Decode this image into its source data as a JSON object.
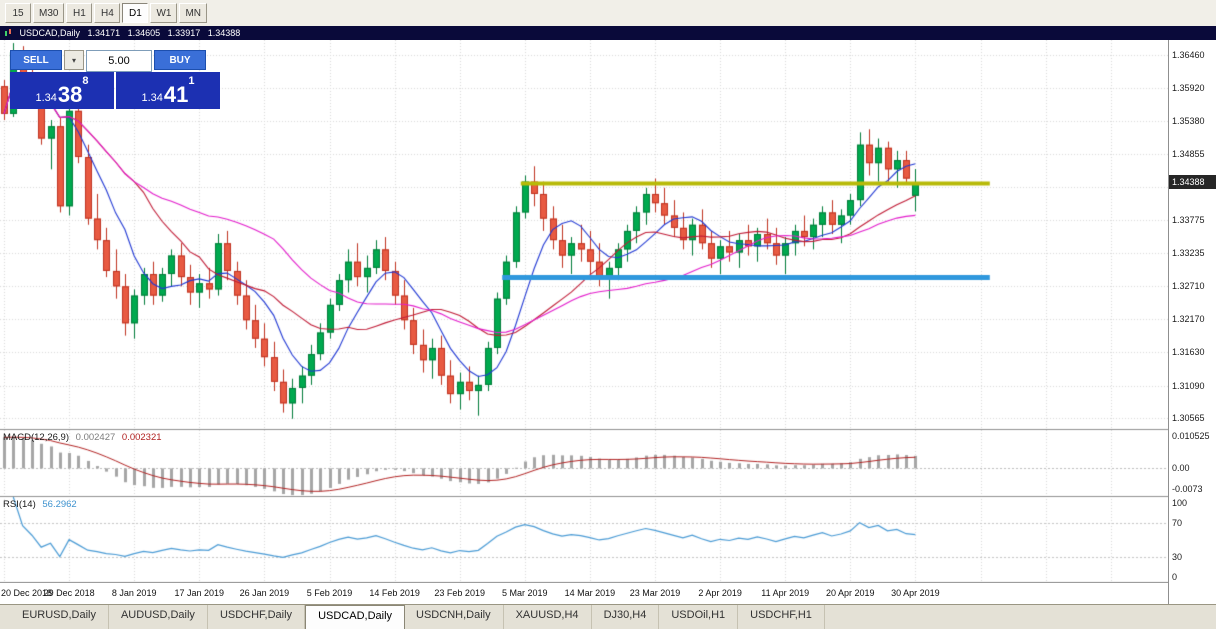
{
  "toolbar": {
    "timeframes": [
      {
        "label": "15",
        "active": false
      },
      {
        "label": "M30",
        "active": false
      },
      {
        "label": "H1",
        "active": false
      },
      {
        "label": "H4",
        "active": false
      },
      {
        "label": "D1",
        "active": true
      },
      {
        "label": "W1",
        "active": false
      },
      {
        "label": "MN",
        "active": false
      }
    ]
  },
  "chart_header": {
    "title": "USDCAD,Daily",
    "open": "1.34171",
    "high": "1.34605",
    "low": "1.33917",
    "close": "1.34388"
  },
  "trade_panel": {
    "sell_label": "SELL",
    "buy_label": "BUY",
    "volume": "5.00",
    "bid": {
      "prefix": "1.34",
      "big": "38",
      "sup": "8"
    },
    "ask": {
      "prefix": "1.34",
      "big": "41",
      "sup": "1"
    }
  },
  "chart_data": {
    "type": "candlestick",
    "symbol": "USDCAD",
    "period": "Daily",
    "ylim": [
      1.304,
      1.367
    ],
    "price_scale": [
      {
        "value": 1.3646,
        "label": "1.36460"
      },
      {
        "value": 1.3592,
        "label": "1.35920"
      },
      {
        "value": 1.3538,
        "label": "1.35380"
      },
      {
        "value": 1.34855,
        "label": "1.34855"
      },
      {
        "value": 1.33775,
        "label": "1.33775"
      },
      {
        "value": 1.33235,
        "label": "1.33235"
      },
      {
        "value": 1.3271,
        "label": "1.32710"
      },
      {
        "value": 1.3217,
        "label": "1.32170"
      },
      {
        "value": 1.3163,
        "label": "1.31630"
      },
      {
        "value": 1.3109,
        "label": "1.31090"
      },
      {
        "value": 1.30565,
        "label": "1.30565"
      }
    ],
    "hidden_gridline": 1.34315,
    "price_badge": {
      "value": 1.34388,
      "label": "1.34388"
    },
    "moving_averages": [
      {
        "name": "ma-fast",
        "period": 7,
        "color": "#2038d4"
      },
      {
        "name": "ma-medium",
        "period": 15,
        "color": "#c01a35"
      },
      {
        "name": "ma-slow",
        "period": 30,
        "color": "#e31ccc"
      }
    ],
    "hlines": [
      {
        "name": "resistance-line",
        "price": 1.3438,
        "color": "#b7ba08",
        "width": 4,
        "from_index": 56,
        "to_index": 106
      },
      {
        "name": "support-line",
        "price": 1.3285,
        "color": "#2f98dd",
        "width": 5,
        "from_index": 54,
        "to_index": 106
      }
    ],
    "macd": {
      "label": "MACD(12,26,9)",
      "value_main": "0.002427",
      "value_signal": "0.002321",
      "range": [
        -0.0073,
        0.010525
      ],
      "scale": [
        {
          "value": 0.010525,
          "label": "0.010525"
        },
        {
          "value": 0,
          "label": "0.00"
        },
        {
          "value": -0.0073,
          "label": "-0.0073"
        }
      ],
      "histogram_color": "#a6a6a6",
      "signal_color": "#b22222"
    },
    "rsi": {
      "label": "RSI(14)",
      "value": "56.2962",
      "levels": [
        70,
        30
      ],
      "scale": [
        {
          "value": 100,
          "label": "100"
        },
        {
          "value": 70,
          "label": "70"
        },
        {
          "value": 30,
          "label": "30"
        },
        {
          "value": 0,
          "label": "0"
        }
      ],
      "line_color": "#4a9bd5"
    },
    "style": {
      "bull_fill": "#00a94f",
      "bull_border": "#007c39",
      "bear_fill": "#e85a42",
      "bear_border": "#bf3220",
      "grid_color": "#d9d9d9",
      "separator_color": "#8f8f8f"
    },
    "time_ticks": [
      {
        "index": 0,
        "label": "20 Dec 2018"
      },
      {
        "index": 7,
        "label": "29 Dec 2018"
      },
      {
        "index": 14,
        "label": "8 Jan 2019"
      },
      {
        "index": 21,
        "label": "17 Jan 2019"
      },
      {
        "index": 28,
        "label": "26 Jan 2019"
      },
      {
        "index": 35,
        "label": "5 Feb 2019"
      },
      {
        "index": 42,
        "label": "14 Feb 2019"
      },
      {
        "index": 49,
        "label": "23 Feb 2019"
      },
      {
        "index": 56,
        "label": "5 Mar 2019"
      },
      {
        "index": 63,
        "label": "14 Mar 2019"
      },
      {
        "index": 70,
        "label": "23 Mar 2019"
      },
      {
        "index": 77,
        "label": "2 Apr 2019"
      },
      {
        "index": 84,
        "label": "11 Apr 2019"
      },
      {
        "index": 91,
        "label": "20 Apr 2019"
      },
      {
        "index": 98,
        "label": "30 Apr 2019"
      }
    ],
    "candles": [
      [
        1.3595,
        1.3605,
        1.354,
        1.355
      ],
      [
        1.355,
        1.3665,
        1.3545,
        1.365
      ],
      [
        1.365,
        1.366,
        1.359,
        1.36
      ],
      [
        1.36,
        1.3625,
        1.356,
        1.357
      ],
      [
        1.357,
        1.359,
        1.35,
        1.351
      ],
      [
        1.351,
        1.354,
        1.346,
        1.353
      ],
      [
        1.353,
        1.3545,
        1.339,
        1.34
      ],
      [
        1.34,
        1.3565,
        1.3385,
        1.3555
      ],
      [
        1.3555,
        1.358,
        1.347,
        1.348
      ],
      [
        1.348,
        1.35,
        1.337,
        1.338
      ],
      [
        1.338,
        1.342,
        1.333,
        1.3345
      ],
      [
        1.3345,
        1.3365,
        1.3285,
        1.3295
      ],
      [
        1.3295,
        1.333,
        1.325,
        1.327
      ],
      [
        1.327,
        1.329,
        1.319,
        1.321
      ],
      [
        1.321,
        1.3265,
        1.3185,
        1.3255
      ],
      [
        1.3255,
        1.33,
        1.324,
        1.329
      ],
      [
        1.329,
        1.331,
        1.324,
        1.3255
      ],
      [
        1.3255,
        1.33,
        1.3245,
        1.329
      ],
      [
        1.329,
        1.333,
        1.327,
        1.332
      ],
      [
        1.332,
        1.334,
        1.327,
        1.3285
      ],
      [
        1.3285,
        1.3305,
        1.324,
        1.326
      ],
      [
        1.326,
        1.329,
        1.3235,
        1.3275
      ],
      [
        1.3275,
        1.33,
        1.325,
        1.3265
      ],
      [
        1.3265,
        1.3355,
        1.3255,
        1.334
      ],
      [
        1.334,
        1.336,
        1.328,
        1.3295
      ],
      [
        1.3295,
        1.331,
        1.324,
        1.3255
      ],
      [
        1.3255,
        1.328,
        1.32,
        1.3215
      ],
      [
        1.3215,
        1.324,
        1.317,
        1.3185
      ],
      [
        1.3185,
        1.321,
        1.314,
        1.3155
      ],
      [
        1.3155,
        1.318,
        1.31,
        1.3115
      ],
      [
        1.3115,
        1.3135,
        1.3065,
        1.308
      ],
      [
        1.308,
        1.312,
        1.3055,
        1.3105
      ],
      [
        1.3105,
        1.314,
        1.308,
        1.3125
      ],
      [
        1.3125,
        1.3175,
        1.311,
        1.316
      ],
      [
        1.316,
        1.321,
        1.315,
        1.3195
      ],
      [
        1.3195,
        1.325,
        1.3185,
        1.324
      ],
      [
        1.324,
        1.329,
        1.323,
        1.328
      ],
      [
        1.328,
        1.333,
        1.326,
        1.331
      ],
      [
        1.331,
        1.334,
        1.327,
        1.3285
      ],
      [
        1.3285,
        1.332,
        1.326,
        1.33
      ],
      [
        1.33,
        1.3345,
        1.329,
        1.333
      ],
      [
        1.333,
        1.335,
        1.328,
        1.3295
      ],
      [
        1.3295,
        1.331,
        1.324,
        1.3255
      ],
      [
        1.3255,
        1.328,
        1.32,
        1.3215
      ],
      [
        1.3215,
        1.3235,
        1.316,
        1.3175
      ],
      [
        1.3175,
        1.32,
        1.313,
        1.315
      ],
      [
        1.315,
        1.3185,
        1.312,
        1.317
      ],
      [
        1.317,
        1.319,
        1.311,
        1.3125
      ],
      [
        1.3125,
        1.315,
        1.308,
        1.3095
      ],
      [
        1.3095,
        1.313,
        1.307,
        1.3115
      ],
      [
        1.3115,
        1.314,
        1.3085,
        1.31
      ],
      [
        1.31,
        1.3125,
        1.306,
        1.311
      ],
      [
        1.311,
        1.318,
        1.31,
        1.317
      ],
      [
        1.317,
        1.326,
        1.316,
        1.325
      ],
      [
        1.325,
        1.332,
        1.324,
        1.331
      ],
      [
        1.331,
        1.34,
        1.33,
        1.339
      ],
      [
        1.339,
        1.345,
        1.338,
        1.344
      ],
      [
        1.344,
        1.3465,
        1.34,
        1.342
      ],
      [
        1.342,
        1.344,
        1.336,
        1.338
      ],
      [
        1.338,
        1.34,
        1.333,
        1.3345
      ],
      [
        1.3345,
        1.337,
        1.33,
        1.332
      ],
      [
        1.332,
        1.335,
        1.329,
        1.334
      ],
      [
        1.334,
        1.337,
        1.331,
        1.333
      ],
      [
        1.333,
        1.336,
        1.329,
        1.331
      ],
      [
        1.331,
        1.334,
        1.327,
        1.3285
      ],
      [
        1.3285,
        1.331,
        1.325,
        1.33
      ],
      [
        1.33,
        1.334,
        1.328,
        1.333
      ],
      [
        1.333,
        1.337,
        1.331,
        1.336
      ],
      [
        1.336,
        1.34,
        1.334,
        1.339
      ],
      [
        1.339,
        1.343,
        1.337,
        1.342
      ],
      [
        1.342,
        1.3445,
        1.339,
        1.3405
      ],
      [
        1.3405,
        1.343,
        1.337,
        1.3385
      ],
      [
        1.3385,
        1.341,
        1.335,
        1.3365
      ],
      [
        1.3365,
        1.339,
        1.333,
        1.3345
      ],
      [
        1.3345,
        1.338,
        1.332,
        1.337
      ],
      [
        1.337,
        1.3395,
        1.333,
        1.334
      ],
      [
        1.334,
        1.336,
        1.33,
        1.3315
      ],
      [
        1.3315,
        1.3345,
        1.329,
        1.3335
      ],
      [
        1.3335,
        1.336,
        1.331,
        1.3325
      ],
      [
        1.3325,
        1.3355,
        1.33,
        1.3345
      ],
      [
        1.3345,
        1.337,
        1.332,
        1.3335
      ],
      [
        1.3335,
        1.3365,
        1.331,
        1.3355
      ],
      [
        1.3355,
        1.338,
        1.333,
        1.334
      ],
      [
        1.334,
        1.3365,
        1.3305,
        1.332
      ],
      [
        1.332,
        1.335,
        1.329,
        1.334
      ],
      [
        1.334,
        1.337,
        1.332,
        1.336
      ],
      [
        1.336,
        1.3385,
        1.3335,
        1.335
      ],
      [
        1.335,
        1.338,
        1.333,
        1.337
      ],
      [
        1.337,
        1.34,
        1.335,
        1.339
      ],
      [
        1.339,
        1.341,
        1.3355,
        1.337
      ],
      [
        1.337,
        1.3395,
        1.334,
        1.3385
      ],
      [
        1.3385,
        1.342,
        1.337,
        1.341
      ],
      [
        1.341,
        1.352,
        1.34,
        1.35
      ],
      [
        1.35,
        1.3525,
        1.345,
        1.347
      ],
      [
        1.347,
        1.351,
        1.344,
        1.3495
      ],
      [
        1.3495,
        1.3505,
        1.344,
        1.346
      ],
      [
        1.346,
        1.349,
        1.343,
        1.3475
      ],
      [
        1.3475,
        1.349,
        1.3435,
        1.3445
      ],
      [
        1.34171,
        1.34605,
        1.33917,
        1.34388
      ]
    ]
  },
  "tabs": [
    {
      "label": "EURUSD,Daily",
      "active": false
    },
    {
      "label": "AUDUSD,Daily",
      "active": false
    },
    {
      "label": "USDCHF,Daily",
      "active": false
    },
    {
      "label": "USDCAD,Daily",
      "active": true
    },
    {
      "label": "USDCNH,Daily",
      "active": false
    },
    {
      "label": "XAUUSD,H4",
      "active": false
    },
    {
      "label": "DJ30,H4",
      "active": false
    },
    {
      "label": "USDOil,H1",
      "active": false
    },
    {
      "label": "USDCHF,H1",
      "active": false
    }
  ]
}
